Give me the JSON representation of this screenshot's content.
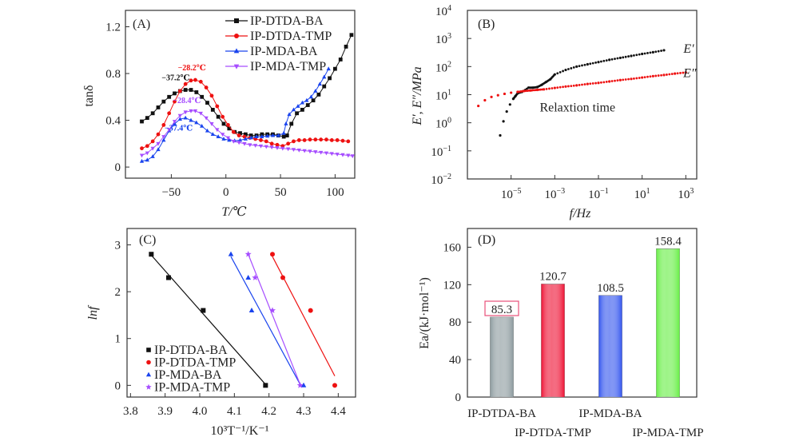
{
  "chart_data": [
    {
      "id": "A",
      "type": "line",
      "panel_label": "(A)",
      "xlabel": "T/℃",
      "ylabel": "tanδ",
      "xlim": [
        -92,
        118
      ],
      "ylim": [
        -0.095,
        1.34
      ],
      "xticks": [
        -50,
        0,
        50,
        100
      ],
      "xtick_labels": [
        "−50",
        "0",
        "50",
        "100"
      ],
      "yticks": [
        0,
        0.4,
        0.8,
        1.2
      ],
      "ytick_labels": [
        "0",
        "0.4",
        "0.8",
        "1.2"
      ],
      "legend_position": "top-right",
      "series": [
        {
          "name": "IP-DTDA-BA",
          "color": "#111111",
          "marker": "square",
          "x": [
            -77,
            -72,
            -67,
            -62,
            -57,
            -52,
            -47,
            -42,
            -37,
            -32,
            -27,
            -22,
            -17,
            -12,
            -7,
            -2,
            3,
            8,
            13,
            18,
            23,
            28,
            33,
            38,
            43,
            48,
            53,
            56,
            60,
            65,
            70,
            75,
            80,
            85,
            90,
            95,
            100,
            105,
            110,
            115
          ],
          "y": [
            0.39,
            0.42,
            0.46,
            0.51,
            0.56,
            0.6,
            0.63,
            0.65,
            0.66,
            0.66,
            0.64,
            0.6,
            0.55,
            0.49,
            0.43,
            0.37,
            0.33,
            0.3,
            0.29,
            0.28,
            0.27,
            0.27,
            0.28,
            0.28,
            0.28,
            0.27,
            0.26,
            0.27,
            0.37,
            0.46,
            0.49,
            0.53,
            0.57,
            0.62,
            0.69,
            0.76,
            0.84,
            0.92,
            1.03,
            1.13
          ]
        },
        {
          "name": "IP-DTDA-TMP",
          "color": "#ee1111",
          "marker": "circle",
          "x": [
            -77,
            -72,
            -67,
            -62,
            -57,
            -52,
            -47,
            -42,
            -37,
            -32,
            -28,
            -23,
            -18,
            -13,
            -8,
            -3,
            2,
            7,
            12,
            17,
            22,
            27,
            32,
            37,
            42,
            47,
            52,
            57,
            62,
            67,
            72,
            77,
            82,
            87,
            92,
            97,
            102,
            107,
            112
          ],
          "y": [
            0.16,
            0.18,
            0.22,
            0.28,
            0.36,
            0.46,
            0.56,
            0.65,
            0.71,
            0.74,
            0.745,
            0.73,
            0.68,
            0.61,
            0.52,
            0.43,
            0.36,
            0.3,
            0.27,
            0.26,
            0.25,
            0.24,
            0.23,
            0.22,
            0.2,
            0.19,
            0.18,
            0.2,
            0.22,
            0.23,
            0.23,
            0.235,
            0.235,
            0.235,
            0.235,
            0.23,
            0.23,
            0.225,
            0.22
          ]
        },
        {
          "name": "IP-MDA-BA",
          "color": "#1a44ee",
          "marker": "triangle-up",
          "x": [
            -77,
            -72,
            -67,
            -62,
            -57,
            -52,
            -47,
            -42,
            -37,
            -32,
            -27,
            -22,
            -17,
            -12,
            -7,
            -2,
            3,
            8,
            13,
            18,
            23,
            28,
            33,
            38,
            43,
            48,
            53,
            55,
            58,
            62,
            66,
            70,
            74,
            78,
            82,
            86,
            90,
            94
          ],
          "y": [
            0.05,
            0.06,
            0.09,
            0.15,
            0.23,
            0.31,
            0.37,
            0.41,
            0.42,
            0.4,
            0.38,
            0.35,
            0.31,
            0.28,
            0.26,
            0.24,
            0.23,
            0.225,
            0.23,
            0.24,
            0.25,
            0.26,
            0.26,
            0.265,
            0.27,
            0.27,
            0.29,
            0.37,
            0.45,
            0.49,
            0.52,
            0.55,
            0.57,
            0.6,
            0.65,
            0.71,
            0.77,
            0.84
          ]
        },
        {
          "name": "IP-MDA-TMP",
          "color": "#a64dff",
          "marker": "triangle-down",
          "x": [
            -77,
            -72,
            -67,
            -62,
            -57,
            -52,
            -47,
            -42,
            -37,
            -32,
            -28,
            -23,
            -18,
            -13,
            -8,
            -3,
            2,
            7,
            12,
            17,
            22,
            27,
            32,
            37,
            42,
            47,
            52,
            57,
            62,
            67,
            72,
            77,
            82,
            87,
            92,
            97,
            102,
            107,
            112,
            116
          ],
          "y": [
            0.1,
            0.12,
            0.16,
            0.2,
            0.26,
            0.32,
            0.39,
            0.44,
            0.47,
            0.48,
            0.48,
            0.46,
            0.42,
            0.37,
            0.32,
            0.28,
            0.25,
            0.22,
            0.21,
            0.2,
            0.19,
            0.185,
            0.18,
            0.175,
            0.17,
            0.165,
            0.16,
            0.155,
            0.15,
            0.145,
            0.14,
            0.135,
            0.13,
            0.125,
            0.12,
            0.115,
            0.11,
            0.105,
            0.1,
            0.095
          ]
        }
      ],
      "annotations": [
        {
          "text": "−37.2℃",
          "x": -37.2,
          "y": 0.66,
          "color": "#111111"
        },
        {
          "text": "−28.2℃",
          "x": -28.2,
          "y": 0.745,
          "color": "#ee1111"
        },
        {
          "text": "−28.4℃",
          "x": -28.4,
          "y": 0.48,
          "color": "#a64dff"
        },
        {
          "text": "−37.4℃",
          "x": -37.4,
          "y": 0.42,
          "color": "#1a44ee"
        }
      ]
    },
    {
      "id": "B",
      "type": "scatter",
      "panel_label": "(B)",
      "xlabel": "f/Hz",
      "ylabel": "E′, E″/MPa",
      "xscale": "log",
      "yscale": "log",
      "xlim_log10": [
        -7,
        3.5
      ],
      "ylim_log10": [
        -2,
        4
      ],
      "xticks_log10": [
        -5,
        -3,
        -1,
        1,
        3
      ],
      "xtick_labels": [
        {
          "base": "10",
          "exp": "−5"
        },
        {
          "base": "10",
          "exp": "−3"
        },
        {
          "base": "10",
          "exp": "−1"
        },
        {
          "base": "10",
          "exp": "1"
        },
        {
          "base": "10",
          "exp": "3"
        }
      ],
      "yticks_log10": [
        -2,
        -1,
        0,
        1,
        2,
        3,
        4
      ],
      "ytick_labels": [
        {
          "base": "10",
          "exp": "−2"
        },
        {
          "base": "10",
          "exp": "−1"
        },
        {
          "base": "10",
          "exp": "0"
        },
        {
          "base": "10",
          "exp": "1"
        },
        {
          "base": "10",
          "exp": "2"
        },
        {
          "base": "10",
          "exp": "3"
        },
        {
          "base": "10",
          "exp": "4"
        }
      ],
      "series": [
        {
          "name": "E′",
          "color": "#111111",
          "log10_x": [
            -5.5,
            -5.35,
            -5.2,
            -5.05,
            -4.9,
            -4.8,
            -4.7,
            -4.5,
            -4.2,
            -4.0,
            -3.8,
            -3.6,
            -3.4,
            -3.2,
            -3.0,
            -2.5,
            -2.0,
            -1.5,
            -1.0,
            -0.5,
            0.0,
            0.5,
            1.0,
            1.5,
            2.0
          ],
          "log10_y": [
            -0.45,
            0.05,
            0.4,
            0.65,
            0.85,
            0.95,
            1.05,
            1.1,
            1.25,
            1.25,
            1.27,
            1.35,
            1.45,
            1.55,
            1.72,
            1.88,
            2.0,
            2.08,
            2.16,
            2.24,
            2.31,
            2.38,
            2.45,
            2.51,
            2.58
          ]
        },
        {
          "name": "E″",
          "color": "#ee1111",
          "log10_x": [
            -6.5,
            -6.2,
            -5.9,
            -5.6,
            -5.3,
            -5.0,
            -4.7,
            -4.4,
            -4.1,
            -3.8,
            -3.5,
            -3.0,
            -2.5,
            -2.0,
            -1.5,
            -1.0,
            -0.5,
            0.0,
            0.5,
            1.0,
            1.5,
            2.0,
            2.5,
            3.0
          ],
          "log10_y": [
            0.6,
            0.8,
            0.92,
            0.98,
            1.03,
            1.07,
            1.1,
            1.13,
            1.15,
            1.17,
            1.19,
            1.24,
            1.29,
            1.33,
            1.38,
            1.42,
            1.47,
            1.52,
            1.56,
            1.61,
            1.66,
            1.7,
            1.75,
            1.79
          ]
        }
      ],
      "annotations": [
        {
          "text": "E′",
          "log10_x": 2.6,
          "log10_y": 2.6
        },
        {
          "text": "E″",
          "log10_x": 3.1,
          "log10_y": 1.8
        },
        {
          "text": "Relaxtion time",
          "log10_x": -3.8,
          "log10_y": 0.6
        }
      ]
    },
    {
      "id": "C",
      "type": "scatter",
      "panel_label": "(C)",
      "xlabel": "10³T⁻¹/K⁻¹",
      "ylabel": "lnf",
      "xlim": [
        3.79,
        4.45
      ],
      "ylim": [
        -0.25,
        3.35
      ],
      "xticks": [
        3.8,
        3.9,
        4.0,
        4.1,
        4.2,
        4.3,
        4.4
      ],
      "xtick_labels": [
        "3.8",
        "3.9",
        "4.0",
        "4.1",
        "4.2",
        "4.3",
        "4.4"
      ],
      "yticks": [
        0,
        1,
        2,
        3
      ],
      "ytick_labels": [
        "0",
        "1",
        "2",
        "3"
      ],
      "legend_position": "bottom-left",
      "series": [
        {
          "name": "IP-DTDA-BA",
          "color": "#111111",
          "marker": "square",
          "x": [
            3.86,
            3.91,
            4.01,
            4.19
          ],
          "y": [
            2.8,
            2.3,
            1.6,
            0
          ],
          "fit": [
            [
              3.86,
              2.78
            ],
            [
              4.19,
              0.02
            ]
          ]
        },
        {
          "name": "IP-DTDA-TMP",
          "color": "#ee1111",
          "marker": "circle",
          "x": [
            4.21,
            4.24,
            4.32,
            4.39
          ],
          "y": [
            2.8,
            2.3,
            1.6,
            0
          ],
          "fit": [
            [
              4.21,
              2.75
            ],
            [
              4.39,
              0.2
            ]
          ]
        },
        {
          "name": "IP-MDA-BA",
          "color": "#1a44ee",
          "marker": "triangle",
          "x": [
            4.09,
            4.14,
            4.15,
            4.3
          ],
          "y": [
            2.8,
            2.3,
            1.6,
            0
          ],
          "fit": [
            [
              4.09,
              2.75
            ],
            [
              4.29,
              0.02
            ]
          ]
        },
        {
          "name": "IP-MDA-TMP",
          "color": "#a64dff",
          "marker": "star",
          "x": [
            4.14,
            4.16,
            4.21,
            4.29
          ],
          "y": [
            2.8,
            2.3,
            1.6,
            0
          ],
          "fit": [
            [
              4.14,
              2.8
            ],
            [
              4.29,
              0.02
            ]
          ]
        }
      ]
    },
    {
      "id": "D",
      "type": "bar",
      "panel_label": "(D)",
      "xlabel": "",
      "ylabel": "Ea/(kJ·mol⁻¹)",
      "ylim": [
        0,
        180
      ],
      "yticks": [
        0,
        40,
        80,
        120,
        160
      ],
      "ytick_labels": [
        "0",
        "40",
        "80",
        "120",
        "160"
      ],
      "categories": [
        "IP-DTDA-BA",
        "IP-DTDA-TMP",
        "IP-MDA-BA",
        "IP-MDA-TMP"
      ],
      "values": [
        85.3,
        120.7,
        108.5,
        158.4
      ],
      "value_labels": [
        "85.3",
        "120.7",
        "108.5",
        "158.4"
      ],
      "colors": [
        "#8c9a9e",
        "#ee1133",
        "#3355ee",
        "#66ee44"
      ],
      "highlighted_label_index": 0,
      "highlight_color": "#e8507a"
    }
  ]
}
